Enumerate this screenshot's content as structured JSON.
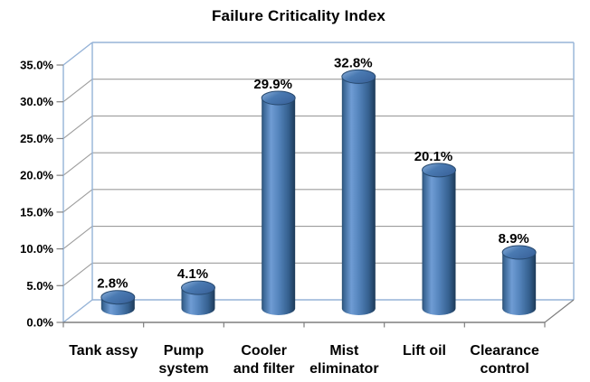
{
  "title": "Failure Criticality Index",
  "chart_data": {
    "type": "bar",
    "subtype": "3d-cylinder",
    "title": "Failure Criticality Index",
    "categories": [
      "Tank assy",
      "Pump system",
      "Cooler and filter",
      "Mist eliminator",
      "Lift oil",
      "Clearance control"
    ],
    "category_lines": [
      [
        "Tank assy"
      ],
      [
        "Pump",
        "system"
      ],
      [
        "Cooler",
        "and filter"
      ],
      [
        "Mist",
        "eliminator"
      ],
      [
        "Lift oil"
      ],
      [
        "Clearance",
        "control"
      ]
    ],
    "values": [
      2.8,
      4.1,
      29.9,
      32.8,
      20.1,
      8.9
    ],
    "data_labels": [
      "2.8%",
      "4.1%",
      "29.9%",
      "32.8%",
      "20.1%",
      "8.9%"
    ],
    "y_ticks": [
      "0.0%",
      "5.0%",
      "10.0%",
      "15.0%",
      "20.0%",
      "25.0%",
      "30.0%",
      "35.0%"
    ],
    "ylim": [
      0,
      35
    ],
    "y_step": 5,
    "xlabel": "",
    "ylabel": "",
    "grid": true,
    "legend": false,
    "background": "#ffffff",
    "colors": {
      "text": "#000000",
      "wall_edge": "#95b3d7",
      "gridline": "#9d9d9d",
      "axis": "#7f7f7f",
      "bar_outline": "#27496e",
      "bar_main": "#4f81bd",
      "bar_body_gradient": [
        [
          "0",
          "#2c4e70"
        ],
        [
          "0.06",
          "#3b6795"
        ],
        [
          "0.28",
          "#6f9cd4"
        ],
        [
          "0.5",
          "#5585bd"
        ],
        [
          "0.8",
          "#35608f"
        ],
        [
          "1",
          "#1d3a58"
        ]
      ],
      "bar_top_gradient": [
        [
          "0",
          "#8fb2dd"
        ],
        [
          "0.45",
          "#4a7ab2"
        ],
        [
          "1",
          "#3a639b"
        ]
      ]
    }
  }
}
